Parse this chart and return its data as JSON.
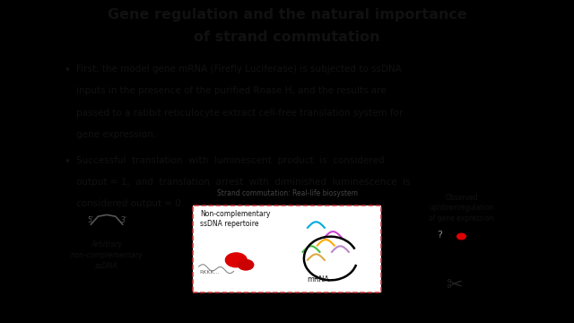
{
  "title_line1": "Gene regulation and the natural importance",
  "title_line2": "of strand commutation",
  "bullet1_line1": "First, the model gene mRNA (Firefly Luciferase) is subjected to ssDNA",
  "bullet1_line2": "inputs in the presence of the purified Rnase H, and the results are",
  "bullet1_line3": "passed to a rabbit reticulocyte extract cell-free translation system for",
  "bullet1_line4": "gene expression.",
  "bullet2_line1": "Successful  translation  with  luminescent  product  is  considered",
  "bullet2_line2": "output = 1,  and  translation  arrest  with  diminished  luminescence  is",
  "bullet2_line3": "considered output = 0.",
  "border_color": "#000000",
  "bg_color": "#f0f0f0",
  "text_color": "#111111",
  "title_fontsize": 11.5,
  "body_fontsize": 7.5,
  "diagram_fontsize": 5.5
}
